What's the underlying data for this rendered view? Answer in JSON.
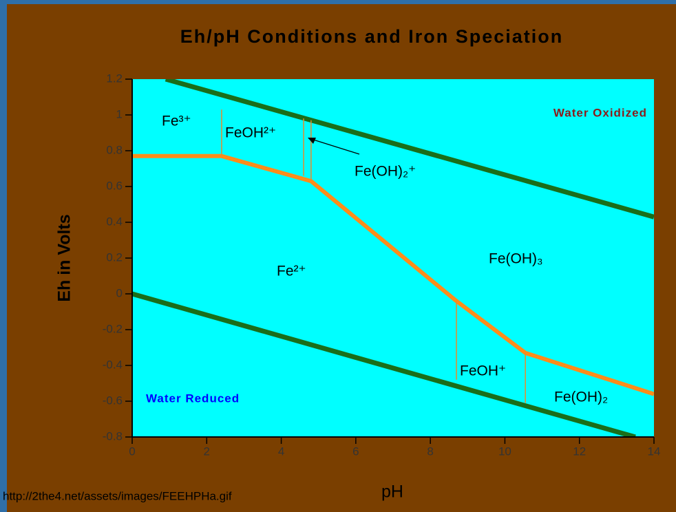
{
  "chart_data": {
    "type": "line",
    "title": "Eh/pH Conditions and Iron Speciation",
    "x_label": "pH",
    "y_label": "Eh in Volts",
    "source": "http://2the4.net/assets/images/FEEHPHa.gif",
    "xlim": [
      0,
      14
    ],
    "ylim": [
      -0.8,
      1.2
    ],
    "xticks": [
      0,
      2,
      4,
      6,
      8,
      10,
      12,
      14
    ],
    "yticks": [
      -0.8,
      -0.6,
      -0.4,
      -0.2,
      0,
      0.2,
      0.4,
      0.6,
      0.8,
      1,
      1.2
    ],
    "background": "#00ffff",
    "series": [
      {
        "color": "#1a6e1a",
        "width": 7,
        "x": [
          0.9,
          14
        ],
        "values": [
          1.2,
          0.43
        ]
      },
      {
        "color": "#1a6e1a",
        "width": 7,
        "x": [
          0,
          13.5
        ],
        "values": [
          0,
          -0.8
        ]
      },
      {
        "color": "#ff8c1a",
        "width": 6,
        "x": [
          0,
          2.4,
          4.8,
          8.7,
          10.55,
          14
        ],
        "values": [
          0.77,
          0.77,
          0.63,
          -0.04,
          -0.33,
          -0.56
        ]
      },
      {
        "color": "#e88a2a",
        "width": 1.5,
        "x": [
          2.4,
          2.4
        ],
        "values": [
          0.77,
          1.03
        ]
      },
      {
        "color": "#e88a2a",
        "width": 1.5,
        "x": [
          4.6,
          4.6
        ],
        "values": [
          0.66,
          0.98
        ]
      },
      {
        "color": "#e88a2a",
        "width": 1.5,
        "x": [
          4.8,
          4.8
        ],
        "values": [
          0.63,
          0.97
        ]
      },
      {
        "color": "#e88a2a",
        "width": 1.5,
        "x": [
          8.7,
          8.7
        ],
        "values": [
          -0.04,
          -0.48
        ]
      },
      {
        "color": "#e88a2a",
        "width": 1.5,
        "x": [
          10.55,
          10.55
        ],
        "values": [
          -0.33,
          -0.61
        ]
      }
    ],
    "annotations": [
      "Fe³⁺",
      "FeOH²⁺",
      "Fe(OH)₂⁺",
      "Water Oxidized",
      "Fe²⁺",
      "Fe(OH)₃",
      "FeOH⁺",
      "Fe(OH)₂",
      "Water Reduced"
    ]
  }
}
